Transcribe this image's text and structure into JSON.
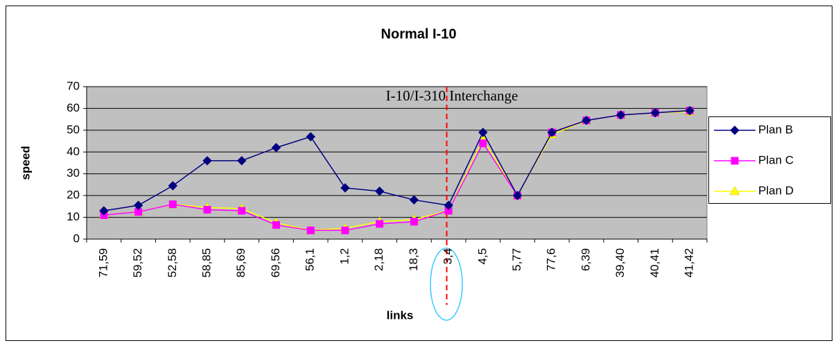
{
  "chart_data": {
    "type": "line",
    "title": "Normal I-10",
    "xlabel": "links",
    "ylabel": "speed",
    "annotation": "I-10/I-310 Interchange",
    "categories": [
      "71,59",
      "59,52",
      "52,58",
      "58,85",
      "85,69",
      "69,56",
      "56,1",
      "1,2",
      "2,18",
      "18,3",
      "3,4",
      "4,5",
      "5,77",
      "77,6",
      "6,39",
      "39,40",
      "40,41",
      "41,42"
    ],
    "series": [
      {
        "name": "Plan B",
        "color": "#000080",
        "marker": "diamond",
        "values": [
          13,
          15.5,
          24.5,
          36,
          36,
          42,
          47,
          23.5,
          22,
          18,
          15.5,
          49,
          20,
          49,
          54.5,
          57,
          58,
          59
        ]
      },
      {
        "name": "Plan C",
        "color": "#ff00ff",
        "marker": "square",
        "values": [
          11,
          12.5,
          16,
          13.5,
          13,
          6.5,
          4,
          4,
          7,
          8,
          13,
          44,
          20,
          49,
          54.5,
          57,
          58,
          59
        ]
      },
      {
        "name": "Plan D",
        "color": "#ffff00",
        "marker": "triangle",
        "values": [
          11,
          12.5,
          16,
          14.5,
          14,
          7.5,
          4,
          5,
          8,
          9,
          13,
          46,
          20,
          48,
          54.5,
          57,
          58,
          58.5
        ]
      }
    ],
    "ylim": [
      0,
      70
    ],
    "yticks": [
      0,
      10,
      20,
      30,
      40,
      50,
      60,
      70
    ],
    "grid": true,
    "legend": "right"
  }
}
